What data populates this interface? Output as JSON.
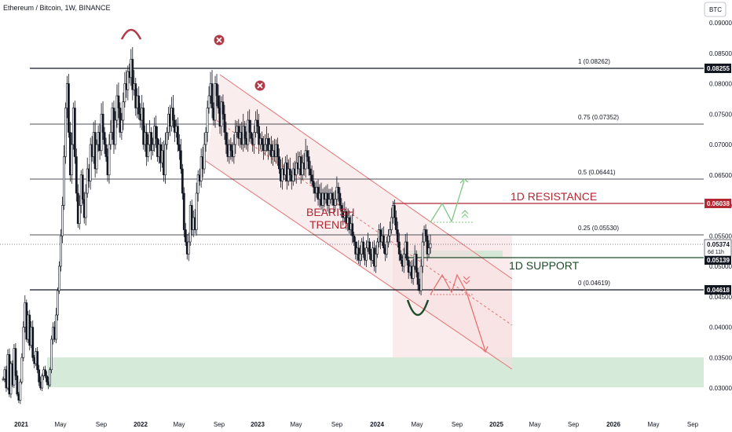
{
  "header": {
    "title": "Ethereum / Bitcoin, 1W, BINANCE",
    "currency_badge": "BTC"
  },
  "colors": {
    "up": "#131722",
    "down": "#131722",
    "resistance": "#b22833",
    "support": "#1e4d2b",
    "fib_line": "#131722",
    "channel": "#e57373",
    "channel_fill": "#f6dfe0",
    "green_zone": "#cfe6d3",
    "arrow_green": "#81c784",
    "arrow_red": "#e57373",
    "marker_red": "#b23a48"
  },
  "annotations": {
    "resistance_label": "1D RESISTANCE",
    "support_label": "1D SUPPORT",
    "bearish_label_1": "BEARISH",
    "bearish_label_2": "TREND",
    "fib_1": "1 (0.08262)",
    "fib_075": "0.75 (0.07352)",
    "fib_05": "0.5 (0.06441)",
    "fib_025": "0.25 (0.05530)",
    "fib_0": "0 (0.04619)"
  },
  "price_tags": {
    "top": "0.08255",
    "resistance": "0.06038",
    "current": "0.05374",
    "countdown": "6d 11h",
    "support": "0.05139",
    "bottom": "0.04618"
  },
  "chart_data": {
    "type": "candlestick",
    "title": "Ethereum / Bitcoin, 1W, BINANCE",
    "y_axis": {
      "ticks": [
        "0.09000",
        "0.08500",
        "0.08000",
        "0.07500",
        "0.07000",
        "0.06500",
        "0.06000",
        "0.05500",
        "0.05000",
        "0.04500",
        "0.04000",
        "0.03500",
        "0.03000"
      ],
      "range": [
        0.0285,
        0.0915
      ]
    },
    "x_axis": {
      "ticks": [
        "2021",
        "May",
        "Sep",
        "2022",
        "May",
        "Sep",
        "2023",
        "May",
        "Sep",
        "2024",
        "May",
        "Sep",
        "2025",
        "May",
        "Sep",
        "2026",
        "May",
        "Sep"
      ]
    },
    "horizontal_levels": [
      {
        "name": "fib_1",
        "value": 0.08262
      },
      {
        "name": "fib_0.75",
        "value": 0.07352
      },
      {
        "name": "fib_0.5",
        "value": 0.06441
      },
      {
        "name": "fib_0.25",
        "value": 0.0553
      },
      {
        "name": "fib_0",
        "value": 0.04619
      },
      {
        "name": "resistance",
        "value": 0.06038
      },
      {
        "name": "support",
        "value": 0.05139
      }
    ],
    "zones": [
      {
        "name": "green_demand_zone",
        "from": 0.0303,
        "to": 0.0351
      },
      {
        "name": "green_small_box",
        "from": 0.0513,
        "to": 0.0524
      }
    ],
    "price_path": [
      [
        0,
        0.0315
      ],
      [
        2,
        0.033
      ],
      [
        4,
        0.03
      ],
      [
        6,
        0.0355
      ],
      [
        8,
        0.029
      ],
      [
        10,
        0.034
      ],
      [
        12,
        0.0305
      ],
      [
        14,
        0.0365
      ],
      [
        16,
        0.032
      ],
      [
        18,
        0.029
      ],
      [
        20,
        0.028
      ],
      [
        22,
        0.031
      ],
      [
        24,
        0.035
      ],
      [
        26,
        0.04
      ],
      [
        28,
        0.044
      ],
      [
        30,
        0.038
      ],
      [
        32,
        0.042
      ],
      [
        34,
        0.037
      ],
      [
        36,
        0.04
      ],
      [
        38,
        0.035
      ],
      [
        40,
        0.034
      ],
      [
        42,
        0.036
      ],
      [
        44,
        0.033
      ],
      [
        46,
        0.031
      ],
      [
        48,
        0.03
      ],
      [
        50,
        0.032
      ],
      [
        52,
        0.033
      ],
      [
        54,
        0.032
      ],
      [
        56,
        0.031
      ],
      [
        58,
        0.0305
      ],
      [
        60,
        0.033
      ],
      [
        62,
        0.038
      ],
      [
        64,
        0.04
      ],
      [
        66,
        0.038
      ],
      [
        68,
        0.042
      ],
      [
        70,
        0.046
      ],
      [
        72,
        0.05
      ],
      [
        74,
        0.055
      ],
      [
        76,
        0.06
      ],
      [
        78,
        0.068
      ],
      [
        80,
        0.076
      ],
      [
        82,
        0.08
      ],
      [
        84,
        0.072
      ],
      [
        86,
        0.065
      ],
      [
        88,
        0.07
      ],
      [
        90,
        0.076
      ],
      [
        92,
        0.068
      ],
      [
        94,
        0.062
      ],
      [
        96,
        0.057
      ],
      [
        98,
        0.06
      ],
      [
        100,
        0.065
      ],
      [
        102,
        0.061
      ],
      [
        104,
        0.058
      ],
      [
        106,
        0.062
      ],
      [
        108,
        0.066
      ],
      [
        110,
        0.064
      ],
      [
        112,
        0.07
      ],
      [
        114,
        0.068
      ],
      [
        116,
        0.072
      ],
      [
        118,
        0.066
      ],
      [
        120,
        0.07
      ],
      [
        122,
        0.072
      ],
      [
        124,
        0.069
      ],
      [
        126,
        0.075
      ],
      [
        128,
        0.072
      ],
      [
        130,
        0.07
      ],
      [
        132,
        0.068
      ],
      [
        134,
        0.065
      ],
      [
        136,
        0.07
      ],
      [
        138,
        0.072
      ],
      [
        140,
        0.076
      ],
      [
        142,
        0.07
      ],
      [
        144,
        0.074
      ],
      [
        146,
        0.078
      ],
      [
        148,
        0.076
      ],
      [
        150,
        0.072
      ],
      [
        152,
        0.074
      ],
      [
        154,
        0.077
      ],
      [
        156,
        0.08
      ],
      [
        158,
        0.079
      ],
      [
        160,
        0.082
      ],
      [
        162,
        0.081
      ],
      [
        164,
        0.084
      ],
      [
        166,
        0.079
      ],
      [
        168,
        0.08
      ],
      [
        170,
        0.076
      ],
      [
        172,
        0.078
      ],
      [
        174,
        0.075
      ],
      [
        176,
        0.074
      ],
      [
        178,
        0.076
      ],
      [
        180,
        0.07
      ],
      [
        182,
        0.072
      ],
      [
        184,
        0.068
      ],
      [
        186,
        0.07
      ],
      [
        188,
        0.072
      ],
      [
        190,
        0.069
      ],
      [
        192,
        0.07
      ],
      [
        194,
        0.073
      ],
      [
        196,
        0.071
      ],
      [
        198,
        0.068
      ],
      [
        200,
        0.07
      ],
      [
        202,
        0.067
      ],
      [
        204,
        0.069
      ],
      [
        206,
        0.065
      ],
      [
        208,
        0.07
      ],
      [
        210,
        0.072
      ],
      [
        212,
        0.075
      ],
      [
        214,
        0.073
      ],
      [
        216,
        0.076
      ],
      [
        218,
        0.074
      ],
      [
        220,
        0.072
      ],
      [
        222,
        0.073
      ],
      [
        224,
        0.07
      ],
      [
        226,
        0.069
      ],
      [
        228,
        0.066
      ],
      [
        230,
        0.062
      ],
      [
        232,
        0.056
      ],
      [
        234,
        0.054
      ],
      [
        236,
        0.052
      ],
      [
        238,
        0.054
      ],
      [
        240,
        0.06
      ],
      [
        242,
        0.056
      ],
      [
        244,
        0.058
      ],
      [
        246,
        0.056
      ],
      [
        248,
        0.062
      ],
      [
        250,
        0.065
      ],
      [
        252,
        0.064
      ],
      [
        254,
        0.068
      ],
      [
        256,
        0.066
      ],
      [
        258,
        0.07
      ],
      [
        260,
        0.072
      ],
      [
        262,
        0.076
      ],
      [
        264,
        0.078
      ],
      [
        266,
        0.08
      ],
      [
        268,
        0.076
      ],
      [
        270,
        0.074
      ],
      [
        272,
        0.08
      ],
      [
        274,
        0.078
      ],
      [
        276,
        0.076
      ],
      [
        278,
        0.073
      ],
      [
        280,
        0.077
      ],
      [
        282,
        0.075
      ],
      [
        284,
        0.072
      ],
      [
        286,
        0.07
      ],
      [
        288,
        0.068
      ],
      [
        290,
        0.07
      ],
      [
        292,
        0.069
      ],
      [
        294,
        0.068
      ],
      [
        296,
        0.07
      ],
      [
        298,
        0.072
      ],
      [
        300,
        0.073
      ],
      [
        302,
        0.071
      ],
      [
        304,
        0.072
      ],
      [
        306,
        0.07
      ],
      [
        308,
        0.073
      ],
      [
        310,
        0.071
      ],
      [
        312,
        0.07
      ],
      [
        314,
        0.074
      ],
      [
        316,
        0.072
      ],
      [
        318,
        0.071
      ],
      [
        320,
        0.07
      ],
      [
        322,
        0.072
      ],
      [
        324,
        0.074
      ],
      [
        326,
        0.073
      ],
      [
        328,
        0.07
      ],
      [
        330,
        0.071
      ],
      [
        332,
        0.07
      ],
      [
        334,
        0.069
      ],
      [
        336,
        0.07
      ],
      [
        338,
        0.071
      ],
      [
        340,
        0.069
      ],
      [
        342,
        0.07
      ],
      [
        344,
        0.068
      ],
      [
        346,
        0.069
      ],
      [
        348,
        0.068
      ],
      [
        350,
        0.07
      ],
      [
        352,
        0.068
      ],
      [
        354,
        0.066
      ],
      [
        356,
        0.064
      ],
      [
        358,
        0.066
      ],
      [
        360,
        0.065
      ],
      [
        362,
        0.067
      ],
      [
        364,
        0.064
      ],
      [
        366,
        0.066
      ],
      [
        368,
        0.065
      ],
      [
        370,
        0.064
      ],
      [
        372,
        0.066
      ],
      [
        374,
        0.065
      ],
      [
        376,
        0.067
      ],
      [
        378,
        0.066
      ],
      [
        380,
        0.068
      ],
      [
        382,
        0.065
      ],
      [
        384,
        0.067
      ],
      [
        386,
        0.066
      ],
      [
        388,
        0.069
      ],
      [
        390,
        0.068
      ],
      [
        392,
        0.066
      ],
      [
        394,
        0.065
      ],
      [
        396,
        0.064
      ],
      [
        398,
        0.063
      ],
      [
        400,
        0.062
      ],
      [
        402,
        0.063
      ],
      [
        404,
        0.061
      ],
      [
        406,
        0.062
      ],
      [
        408,
        0.06
      ],
      [
        410,
        0.062
      ],
      [
        412,
        0.061
      ],
      [
        414,
        0.062
      ],
      [
        416,
        0.06
      ],
      [
        418,
        0.061
      ],
      [
        420,
        0.062
      ],
      [
        422,
        0.061
      ],
      [
        424,
        0.06
      ],
      [
        426,
        0.061
      ],
      [
        428,
        0.063
      ],
      [
        430,
        0.062
      ],
      [
        432,
        0.06
      ],
      [
        434,
        0.059
      ],
      [
        436,
        0.058
      ],
      [
        438,
        0.059
      ],
      [
        440,
        0.057
      ],
      [
        442,
        0.058
      ],
      [
        444,
        0.056
      ],
      [
        446,
        0.057
      ],
      [
        448,
        0.055
      ],
      [
        450,
        0.054
      ],
      [
        452,
        0.052
      ],
      [
        454,
        0.053
      ],
      [
        456,
        0.051
      ],
      [
        458,
        0.052
      ],
      [
        460,
        0.054
      ],
      [
        462,
        0.052
      ],
      [
        464,
        0.051
      ],
      [
        466,
        0.053
      ],
      [
        468,
        0.054
      ],
      [
        470,
        0.052
      ],
      [
        472,
        0.051
      ],
      [
        474,
        0.053
      ],
      [
        476,
        0.05
      ],
      [
        478,
        0.052
      ],
      [
        480,
        0.054
      ],
      [
        482,
        0.056
      ],
      [
        484,
        0.054
      ],
      [
        486,
        0.055
      ],
      [
        488,
        0.053
      ],
      [
        490,
        0.052
      ],
      [
        492,
        0.054
      ],
      [
        494,
        0.055
      ],
      [
        496,
        0.056
      ],
      [
        498,
        0.058
      ],
      [
        500,
        0.06
      ],
      [
        502,
        0.058
      ],
      [
        504,
        0.056
      ],
      [
        506,
        0.054
      ],
      [
        508,
        0.052
      ],
      [
        510,
        0.051
      ],
      [
        512,
        0.05
      ],
      [
        514,
        0.052
      ],
      [
        516,
        0.054
      ],
      [
        518,
        0.051
      ],
      [
        520,
        0.049
      ],
      [
        522,
        0.05
      ],
      [
        524,
        0.048
      ],
      [
        526,
        0.05
      ],
      [
        528,
        0.052
      ],
      [
        530,
        0.049
      ],
      [
        532,
        0.047
      ],
      [
        534,
        0.046
      ],
      [
        536,
        0.05
      ],
      [
        538,
        0.054
      ],
      [
        540,
        0.056
      ],
      [
        542,
        0.055
      ],
      [
        544,
        0.052
      ],
      [
        546,
        0.053
      ],
      [
        548,
        0.0537
      ]
    ]
  }
}
